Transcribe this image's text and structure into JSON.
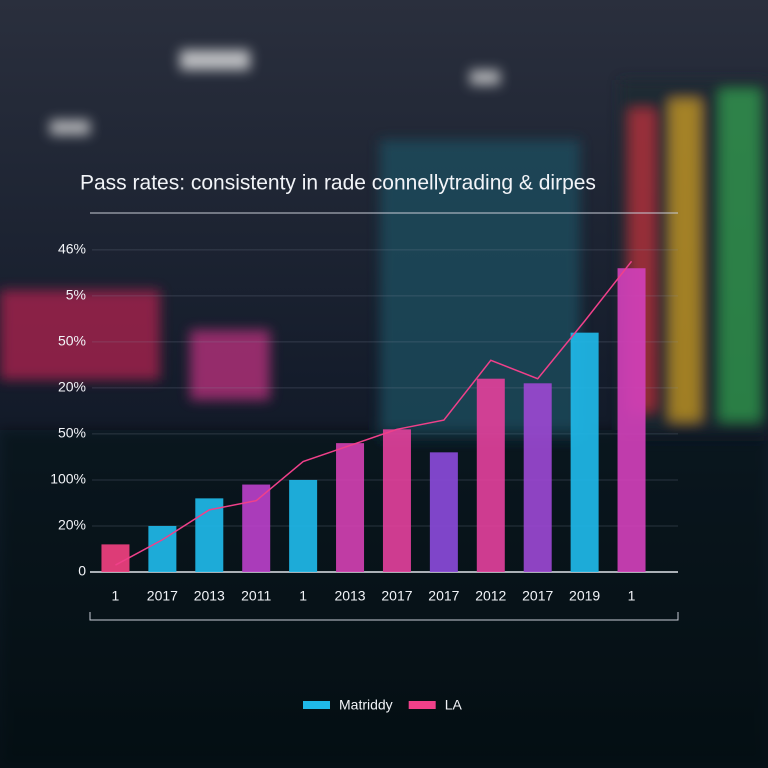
{
  "chart_data": {
    "type": "bar",
    "title": "Pass rates: consistenty in rade connellytrading & dirpes",
    "categories": [
      "1",
      "2017",
      "2013",
      "2011",
      "1",
      "2013",
      "2017",
      "2017",
      "2012",
      "2017",
      "2019",
      "1"
    ],
    "series": [
      {
        "name": "Matriddy",
        "color": "#1fb8e8",
        "colors": [
          "#f0407f",
          "#1fb8e8",
          "#1fb8e8",
          "#b840c8",
          "#1fb8e8",
          "#d040b0",
          "#e0409a",
          "#8a4ad8",
          "#e0409a",
          "#9a48d0",
          "#1fb8e8",
          "#d040b8"
        ],
        "values": [
          0.6,
          1.0,
          1.6,
          1.9,
          2.0,
          2.8,
          3.1,
          2.6,
          4.2,
          4.1,
          5.2,
          6.6
        ]
      },
      {
        "name": "LA",
        "color": "#f0408a",
        "type": "line",
        "values": [
          0.15,
          0.7,
          1.35,
          1.55,
          2.4,
          2.75,
          3.1,
          3.3,
          4.6,
          4.2,
          5.45,
          6.75
        ]
      }
    ],
    "ylim": [
      0,
      7.8
    ],
    "yticks": [
      0,
      {
        "value": 1,
        "label": "20%"
      },
      {
        "value": 2,
        "label": "100%"
      },
      {
        "value": 3,
        "label": "50%"
      },
      {
        "value": 4,
        "label": "20%"
      },
      {
        "value": 5,
        "label": "50%"
      },
      {
        "value": 6,
        "label": "5%"
      },
      {
        "value": 7,
        "label": "46%"
      }
    ],
    "grid": true
  }
}
